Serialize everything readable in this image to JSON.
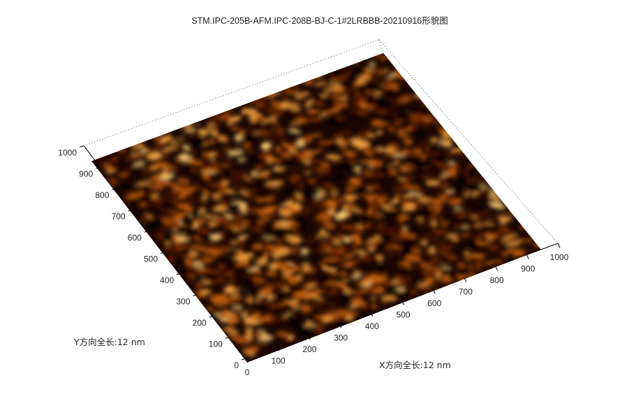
{
  "chart_data": {
    "type": "heatmap",
    "title": "STM.IPC-205B-AFM.IPC-208B-BJ-C-1#2LRBBB-20210916形貌图",
    "xlabel": "X方向全长:12 nm",
    "ylabel": "Y方向全长:12 nm",
    "xlim": [
      0,
      1000
    ],
    "ylim": [
      0,
      1000
    ],
    "x_ticks": [
      "0",
      "100",
      "200",
      "300",
      "400",
      "500",
      "600",
      "700",
      "800",
      "900",
      "1000"
    ],
    "y_ticks": [
      "0",
      "100",
      "200",
      "300",
      "400",
      "500",
      "600",
      "700",
      "800",
      "900",
      "1000"
    ],
    "surface": "orange-brown granular topography (3D view, colormap copper)",
    "colormap": [
      "#000000",
      "#3a1202",
      "#7a2e06",
      "#c4600f",
      "#f0a040",
      "#ffd27a"
    ],
    "grid": "dotted box edges",
    "view": "3D isometric"
  }
}
